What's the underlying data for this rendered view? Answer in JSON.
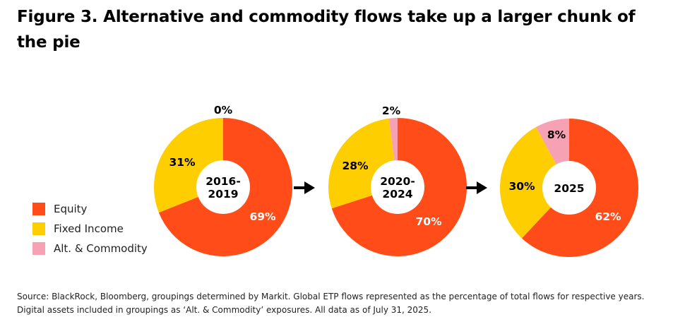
{
  "title": "Figure 3. Alternative and commodity flows take up a larger chunk of the pie",
  "source": "Source: BlackRock, Bloomberg, groupings determined by Markit. Global ETP flows represented as the percentage of total flows for respective years. Digital assets included in groupings as ‘Alt. & Commodity’ exposures. All data as of July 31, 2025.",
  "colors": {
    "equity": "#FF4C19",
    "fixed_income": "#FFCE00",
    "alt_commodity": "#F7A1B4",
    "equity_label_text": "#ffffff",
    "other_label_text": "#000000"
  },
  "legend": [
    {
      "label": "Equity",
      "color": "#FF4C19"
    },
    {
      "label": "Fixed Income",
      "color": "#FFCE00"
    },
    {
      "label": "Alt. & Commodity",
      "color": "#F7A1B4"
    }
  ],
  "arrow_icon": "right-arrow-icon",
  "chart_data": [
    {
      "type": "pie",
      "donut": true,
      "title": "",
      "center_lines": [
        "2016-",
        "2019"
      ],
      "categories": [
        "Equity",
        "Fixed Income",
        "Alt. & Commodity"
      ],
      "values": [
        69,
        31,
        0
      ],
      "labels": [
        "69%",
        "31%",
        "0%"
      ]
    },
    {
      "type": "pie",
      "donut": true,
      "title": "",
      "center_lines": [
        "2020-",
        "2024"
      ],
      "categories": [
        "Equity",
        "Fixed Income",
        "Alt. & Commodity"
      ],
      "values": [
        70,
        28,
        2
      ],
      "labels": [
        "70%",
        "28%",
        "2%"
      ]
    },
    {
      "type": "pie",
      "donut": true,
      "title": "",
      "center_lines": [
        "2025"
      ],
      "categories": [
        "Equity",
        "Fixed Income",
        "Alt. & Commodity"
      ],
      "values": [
        62,
        30,
        8
      ],
      "labels": [
        "62%",
        "30%",
        "8%"
      ]
    }
  ]
}
